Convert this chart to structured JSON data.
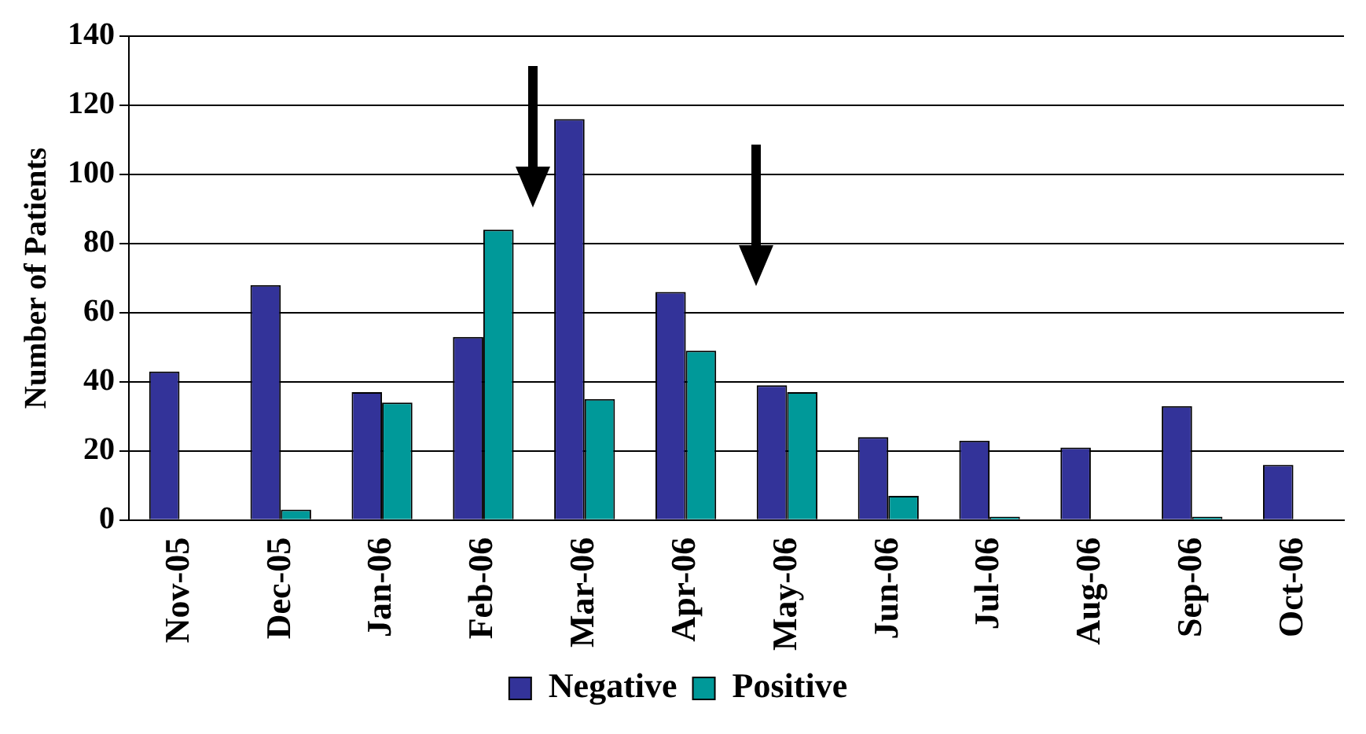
{
  "chart_data": {
    "type": "bar",
    "ylabel": "Number of Patients",
    "categories": [
      "Nov-05",
      "Dec-05",
      "Jan-06",
      "Feb-06",
      "Mar-06",
      "Apr-06",
      "May-06",
      "Jun-06",
      "Jul-06",
      "Aug-06",
      "Sep-06",
      "Oct-06"
    ],
    "series": [
      {
        "name": "Negative",
        "color": "#333399",
        "values": [
          43,
          68,
          37,
          53,
          116,
          66,
          39,
          24,
          23,
          21,
          33,
          16
        ]
      },
      {
        "name": "Positive",
        "color": "#009999",
        "values": [
          null,
          3,
          34,
          84,
          35,
          49,
          37,
          7,
          1,
          null,
          1,
          null
        ]
      }
    ],
    "ylim": [
      0,
      140
    ],
    "yticks": [
      0,
      20,
      40,
      60,
      80,
      100,
      120,
      140
    ],
    "grid": "y",
    "legend": "bottom"
  }
}
